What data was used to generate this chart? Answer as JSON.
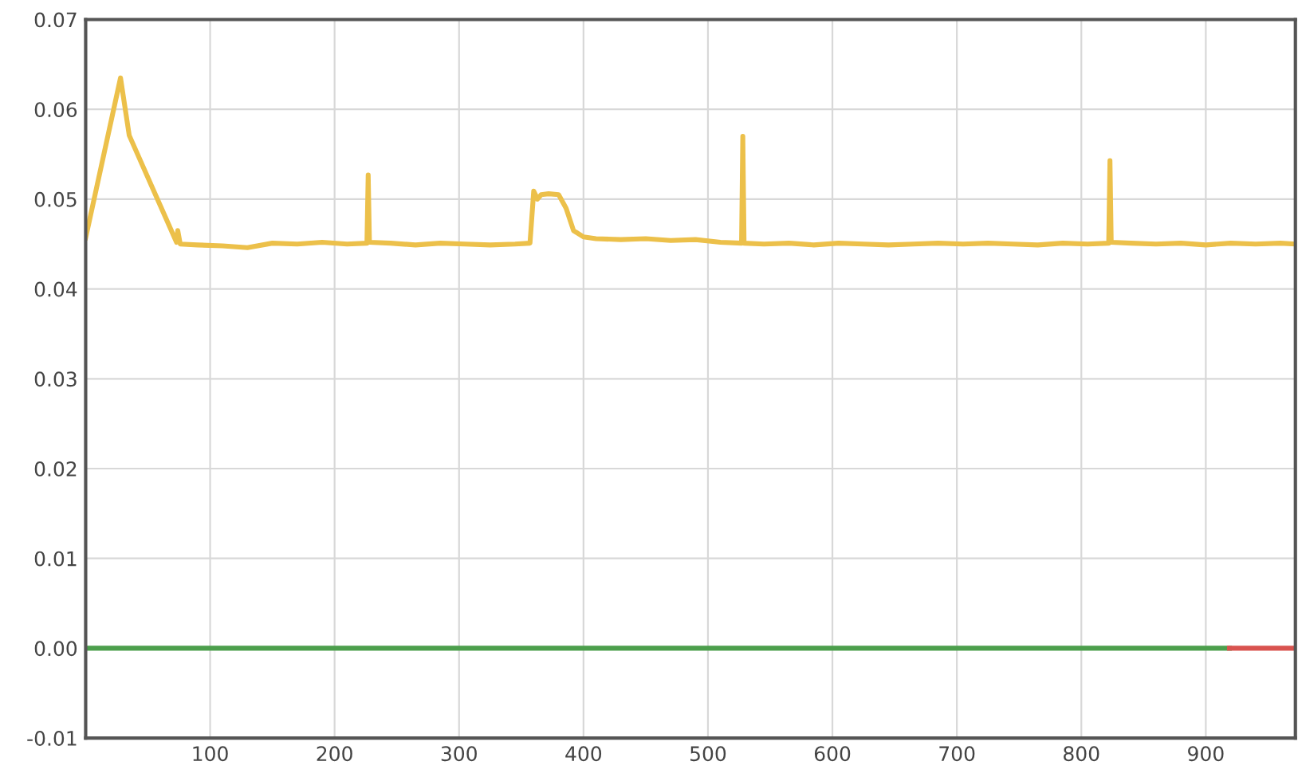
{
  "chart_data": {
    "type": "line",
    "xlim": [
      0,
      972
    ],
    "ylim": [
      -0.01,
      0.07
    ],
    "xticks": [
      100,
      200,
      300,
      400,
      500,
      600,
      700,
      800,
      900
    ],
    "yticks": [
      {
        "value": -0.01,
        "label": "-0.01"
      },
      {
        "value": 0,
        "label": "0.00"
      },
      {
        "value": 0.01,
        "label": "0.01"
      },
      {
        "value": 0.02,
        "label": "0.02"
      },
      {
        "value": 0.03,
        "label": "0.03"
      },
      {
        "value": 0.04,
        "label": "0.04"
      },
      {
        "value": 0.05,
        "label": "0.05"
      },
      {
        "value": 0.06,
        "label": "0.06"
      },
      {
        "value": 0.07,
        "label": "0.07"
      }
    ],
    "grid": true,
    "marker": "none",
    "line_style": "solid",
    "series": [
      {
        "color": "#ecc04a",
        "x": [
          0,
          28,
          35,
          73,
          74,
          76,
          90,
          110,
          130,
          150,
          170,
          190,
          210,
          226,
          227,
          228,
          245,
          265,
          285,
          305,
          325,
          345,
          357,
          360,
          363,
          366,
          372,
          380,
          386,
          392,
          400,
          410,
          430,
          450,
          470,
          490,
          510,
          527,
          528,
          529,
          545,
          565,
          585,
          605,
          625,
          645,
          665,
          685,
          705,
          725,
          745,
          765,
          785,
          805,
          822,
          823,
          824,
          840,
          860,
          880,
          900,
          920,
          940,
          960,
          972
        ],
        "values": [
          0.0457,
          0.0635,
          0.0571,
          0.0452,
          0.0465,
          0.045,
          0.0449,
          0.0448,
          0.0446,
          0.0451,
          0.045,
          0.0452,
          0.045,
          0.0451,
          0.0527,
          0.0452,
          0.0451,
          0.0449,
          0.0451,
          0.045,
          0.0449,
          0.045,
          0.0451,
          0.0509,
          0.05,
          0.0505,
          0.0506,
          0.0505,
          0.049,
          0.0465,
          0.0458,
          0.0456,
          0.0455,
          0.0456,
          0.0454,
          0.0455,
          0.0452,
          0.0451,
          0.057,
          0.0451,
          0.045,
          0.0451,
          0.0449,
          0.0451,
          0.045,
          0.0449,
          0.045,
          0.0451,
          0.045,
          0.0451,
          0.045,
          0.0449,
          0.0451,
          0.045,
          0.0451,
          0.0543,
          0.0452,
          0.0451,
          0.045,
          0.0451,
          0.0449,
          0.0451,
          0.045,
          0.0451,
          0.045
        ]
      },
      {
        "color": "#4c9f4c",
        "x": [
          0,
          919
        ],
        "values": [
          0,
          0
        ]
      },
      {
        "color": "#d9534f",
        "x": [
          919,
          972
        ],
        "values": [
          0,
          0
        ]
      }
    ]
  }
}
